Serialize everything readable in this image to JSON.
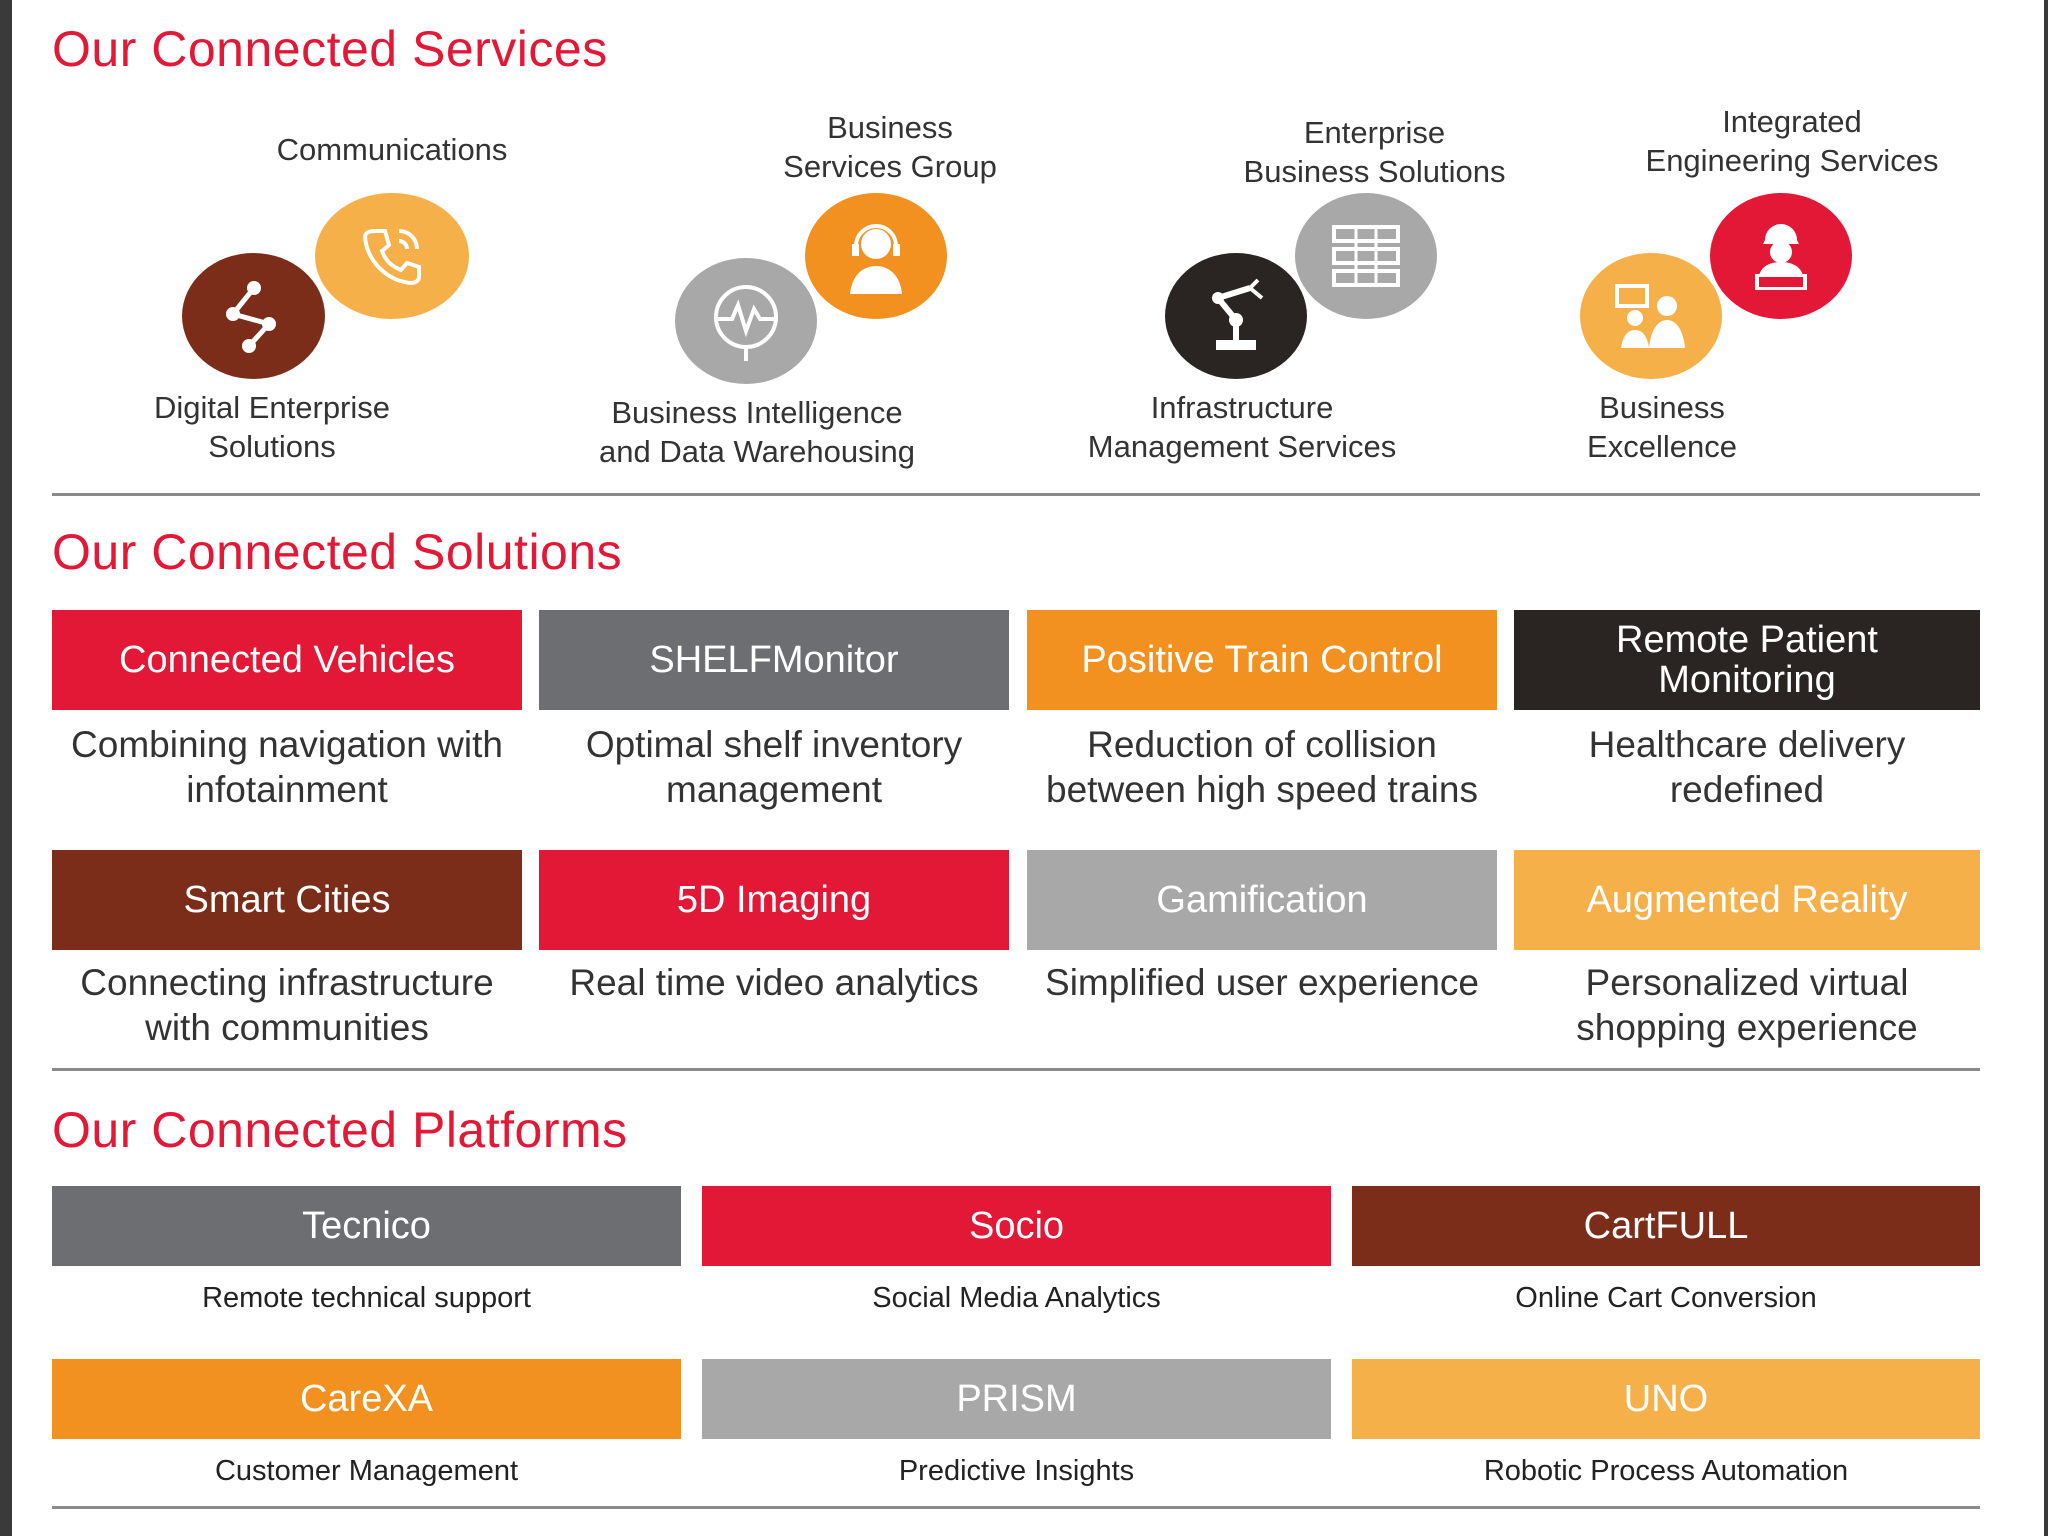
{
  "services": {
    "title": "Our Connected Services",
    "items": [
      {
        "label": "Communications",
        "icon": "phone-icon",
        "color": "#f6b04a"
      },
      {
        "label": "Digital Enterprise\nSolutions",
        "icon": "network-icon",
        "color": "#7b2d1a"
      },
      {
        "label": "Business\nServices Group",
        "icon": "headset-agent-icon",
        "color": "#f29120"
      },
      {
        "label": "Business Intelligence\nand Data Warehousing",
        "icon": "globe-analytics-icon",
        "color": "#a8a8a8"
      },
      {
        "label": "Enterprise\nBusiness Solutions",
        "icon": "server-icon",
        "color": "#a8a8a8"
      },
      {
        "label": "Infrastructure\nManagement Services",
        "icon": "robot-arm-icon",
        "color": "#2a2522"
      },
      {
        "label": "Integrated\nEngineering Services",
        "icon": "engineer-laptop-icon",
        "color": "#e31837"
      },
      {
        "label": "Business\nExcellence",
        "icon": "meeting-icon",
        "color": "#f6b04a"
      }
    ]
  },
  "solutions": {
    "title": "Our Connected Solutions",
    "items": [
      {
        "name": "Connected Vehicles",
        "desc": "Combining navigation with infotainment",
        "color": "#e31837"
      },
      {
        "name": "SHELFMonitor",
        "desc": "Optimal shelf inventory management",
        "color": "#6d6e71"
      },
      {
        "name": "Positive Train Control",
        "desc": "Reduction of collision between high speed trains",
        "color": "#f29120"
      },
      {
        "name": "Remote Patient Monitoring",
        "desc": "Healthcare delivery redefined",
        "color": "#2a2522"
      },
      {
        "name": "Smart Cities",
        "desc": "Connecting infrastructure with communities",
        "color": "#7b2d1a"
      },
      {
        "name": "5D Imaging",
        "desc": "Real time video analytics",
        "color": "#e31837"
      },
      {
        "name": "Gamification",
        "desc": "Simplified user experience",
        "color": "#a8a8a8"
      },
      {
        "name": "Augmented Reality",
        "desc": "Personalized virtual shopping experience",
        "color": "#f6b04a"
      }
    ]
  },
  "platforms": {
    "title": "Our Connected Platforms",
    "items": [
      {
        "name": "Tecnico",
        "desc": "Remote technical support",
        "color": "#6d6e71"
      },
      {
        "name": "Socio",
        "desc": "Social Media Analytics",
        "color": "#e31837"
      },
      {
        "name": "CartFULL",
        "desc": "Online Cart Conversion",
        "color": "#7b2d1a"
      },
      {
        "name": "CareXA",
        "desc": "Customer Management",
        "color": "#f29120"
      },
      {
        "name": "PRISM",
        "desc": "Predictive Insights",
        "color": "#a8a8a8"
      },
      {
        "name": "UNO",
        "desc": "Robotic Process Automation",
        "color": "#f6b04a"
      }
    ]
  }
}
